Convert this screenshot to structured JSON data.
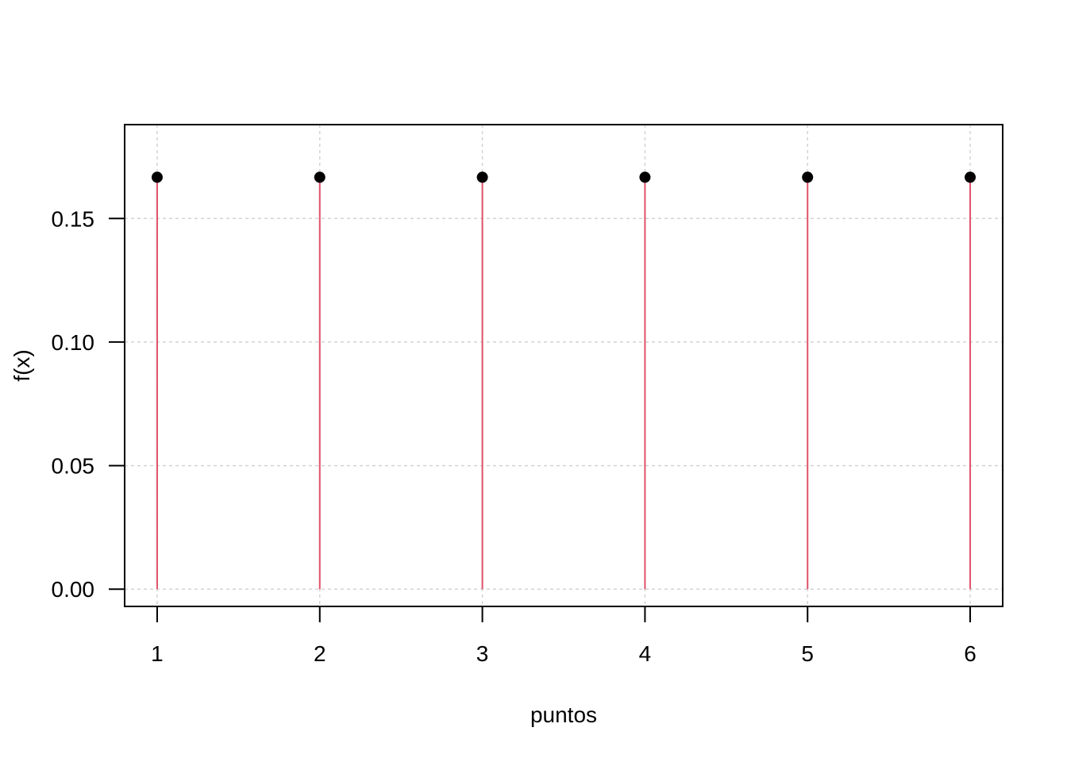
{
  "chart_data": {
    "type": "stem",
    "title": "",
    "xlabel": "puntos",
    "ylabel": "f(x)",
    "x": [
      1,
      2,
      3,
      4,
      5,
      6
    ],
    "y": [
      0.1667,
      0.1667,
      0.1667,
      0.1667,
      0.1667,
      0.1667
    ],
    "xlim": [
      0.8,
      6.2
    ],
    "ylim": [
      -0.007,
      0.188
    ],
    "x_ticks": [
      1,
      2,
      3,
      4,
      5,
      6
    ],
    "x_tick_labels": [
      "1",
      "2",
      "3",
      "4",
      "5",
      "6"
    ],
    "y_ticks": [
      0,
      0.05,
      0.1,
      0.15
    ],
    "y_tick_labels": [
      "0.00",
      "0.05",
      "0.10",
      "0.15"
    ],
    "grid": true,
    "colors": {
      "stem": "#DF536B",
      "point": "#000000",
      "grid": "#D3D3D3",
      "axis": "#000000"
    }
  }
}
